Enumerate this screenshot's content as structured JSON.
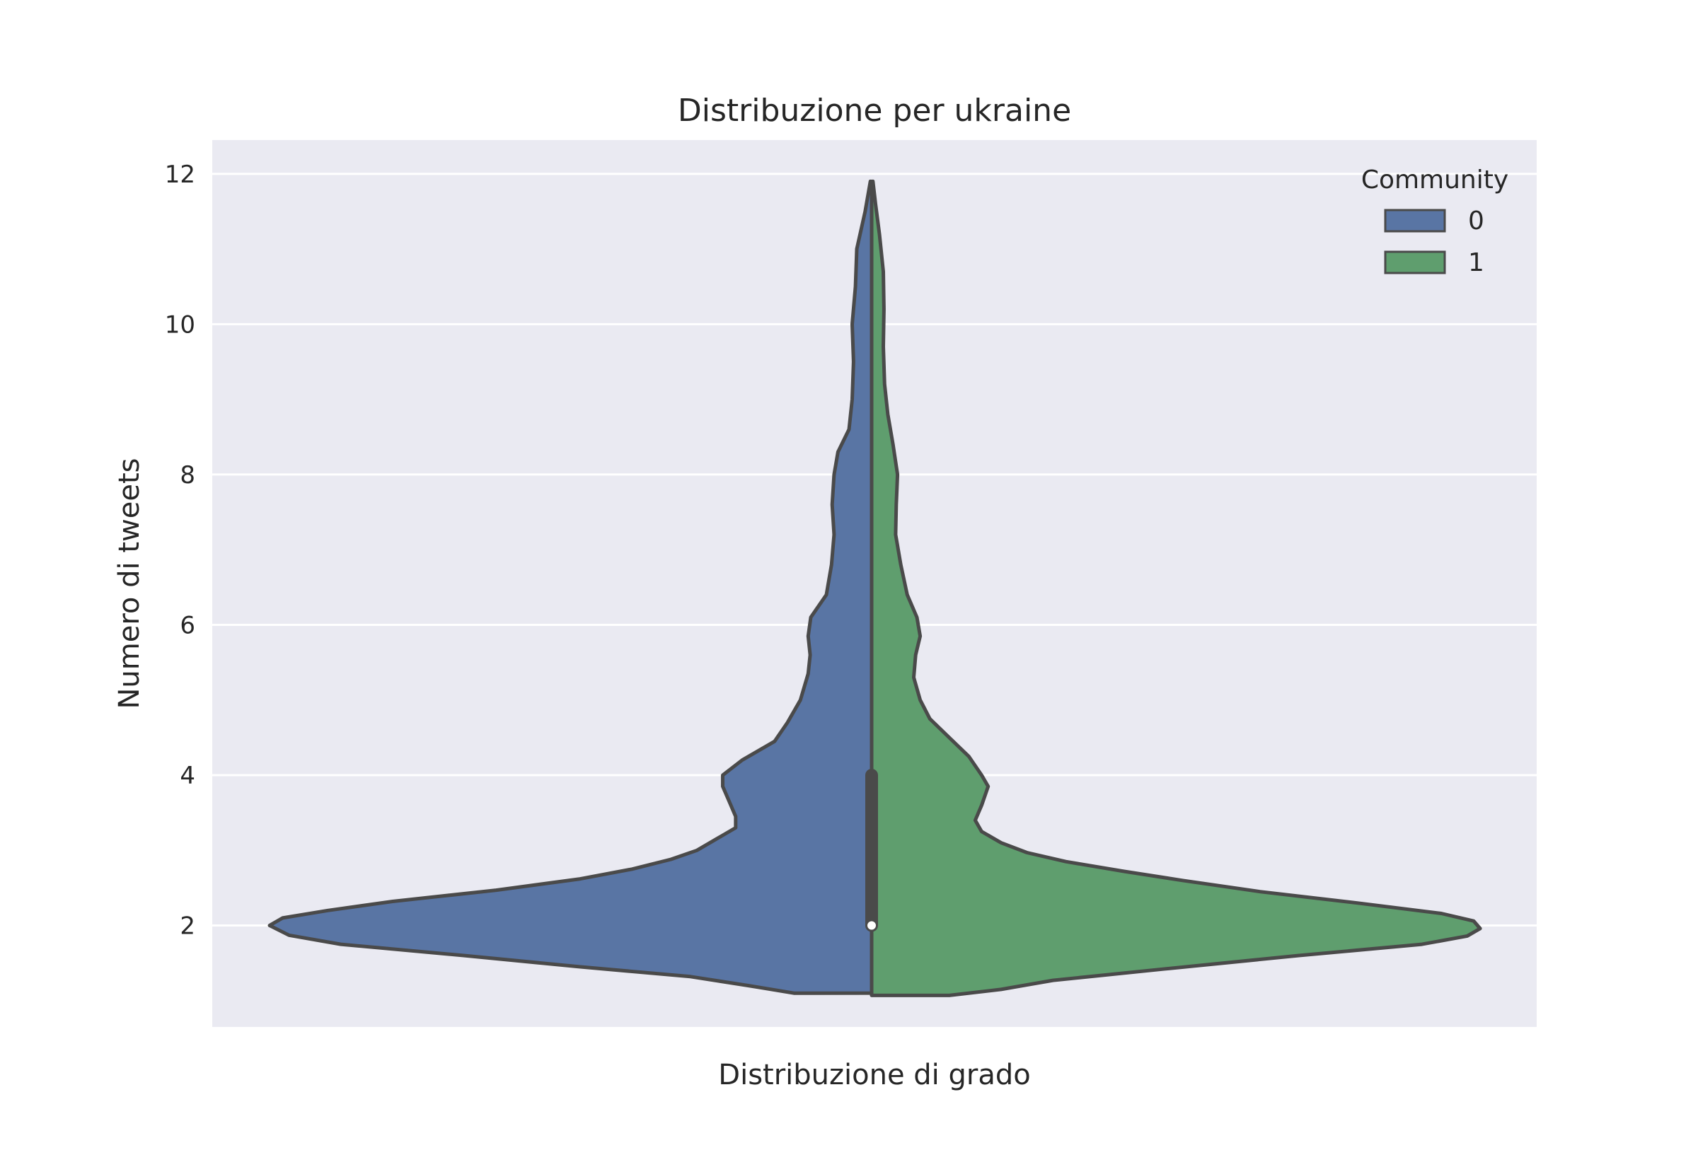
{
  "chart_data": {
    "type": "violin",
    "title": "Distribuzione per ukraine",
    "xlabel": "Distribuzione di grado",
    "ylabel": "Numero di tweets",
    "ylim": [
      0.65,
      12.45
    ],
    "yticks": [
      2,
      4,
      6,
      8,
      10,
      12
    ],
    "yticklabels": [
      "2",
      "4",
      "6",
      "8",
      "10",
      "12"
    ],
    "grid": true,
    "legend": {
      "title": "Community",
      "position": "top-right",
      "entries": [
        "0",
        "1"
      ]
    },
    "colors": {
      "background": "#eaeaf2",
      "grid": "#ffffff",
      "outline": "#4a4a4a"
    },
    "series": [
      {
        "name": "0",
        "side": "left",
        "color": "#5975a4",
        "density": [
          [
            1.1,
            0.12
          ],
          [
            1.2,
            0.19
          ],
          [
            1.32,
            0.28
          ],
          [
            1.45,
            0.45
          ],
          [
            1.6,
            0.63
          ],
          [
            1.75,
            0.82
          ],
          [
            1.87,
            0.9
          ],
          [
            2.0,
            0.93
          ],
          [
            2.1,
            0.91
          ],
          [
            2.2,
            0.84
          ],
          [
            2.32,
            0.74
          ],
          [
            2.47,
            0.58
          ],
          [
            2.62,
            0.45
          ],
          [
            2.75,
            0.37
          ],
          [
            2.88,
            0.31
          ],
          [
            3.0,
            0.27
          ],
          [
            3.15,
            0.24
          ],
          [
            3.3,
            0.21
          ],
          [
            3.45,
            0.21
          ],
          [
            3.65,
            0.22
          ],
          [
            3.85,
            0.23
          ],
          [
            4.0,
            0.23
          ],
          [
            4.2,
            0.2
          ],
          [
            4.45,
            0.15
          ],
          [
            4.7,
            0.13
          ],
          [
            5.0,
            0.11
          ],
          [
            5.35,
            0.098
          ],
          [
            5.6,
            0.095
          ],
          [
            5.85,
            0.098
          ],
          [
            6.1,
            0.094
          ],
          [
            6.4,
            0.07
          ],
          [
            6.8,
            0.062
          ],
          [
            7.2,
            0.058
          ],
          [
            7.6,
            0.061
          ],
          [
            8.0,
            0.058
          ],
          [
            8.3,
            0.052
          ],
          [
            8.6,
            0.035
          ],
          [
            9.0,
            0.03
          ],
          [
            9.5,
            0.028
          ],
          [
            10.0,
            0.03
          ],
          [
            10.5,
            0.025
          ],
          [
            11.0,
            0.023
          ],
          [
            11.5,
            0.01
          ],
          [
            11.9,
            0.002
          ]
        ]
      },
      {
        "name": "1",
        "side": "right",
        "color": "#5f9e6e",
        "density": [
          [
            1.07,
            0.12
          ],
          [
            1.15,
            0.2
          ],
          [
            1.27,
            0.28
          ],
          [
            1.42,
            0.45
          ],
          [
            1.6,
            0.66
          ],
          [
            1.75,
            0.85
          ],
          [
            1.86,
            0.92
          ],
          [
            1.96,
            0.94
          ],
          [
            2.06,
            0.93
          ],
          [
            2.16,
            0.88
          ],
          [
            2.3,
            0.75
          ],
          [
            2.45,
            0.6
          ],
          [
            2.6,
            0.48
          ],
          [
            2.72,
            0.39
          ],
          [
            2.85,
            0.3
          ],
          [
            2.97,
            0.24
          ],
          [
            3.1,
            0.2
          ],
          [
            3.25,
            0.17
          ],
          [
            3.4,
            0.16
          ],
          [
            3.6,
            0.17
          ],
          [
            3.85,
            0.18
          ],
          [
            4.0,
            0.17
          ],
          [
            4.25,
            0.15
          ],
          [
            4.5,
            0.12
          ],
          [
            4.75,
            0.09
          ],
          [
            5.0,
            0.075
          ],
          [
            5.3,
            0.065
          ],
          [
            5.6,
            0.068
          ],
          [
            5.85,
            0.075
          ],
          [
            6.1,
            0.07
          ],
          [
            6.4,
            0.055
          ],
          [
            6.8,
            0.045
          ],
          [
            7.2,
            0.037
          ],
          [
            7.6,
            0.038
          ],
          [
            8.0,
            0.04
          ],
          [
            8.4,
            0.033
          ],
          [
            8.8,
            0.025
          ],
          [
            9.2,
            0.02
          ],
          [
            9.7,
            0.018
          ],
          [
            10.2,
            0.019
          ],
          [
            10.7,
            0.018
          ],
          [
            11.2,
            0.012
          ],
          [
            11.6,
            0.006
          ],
          [
            11.9,
            0.002
          ]
        ]
      }
    ],
    "inner_box": {
      "q1": 2.0,
      "median": 2.0,
      "q3": 4.0,
      "whisker_low": 1.1,
      "whisker_high": 11.9
    }
  }
}
